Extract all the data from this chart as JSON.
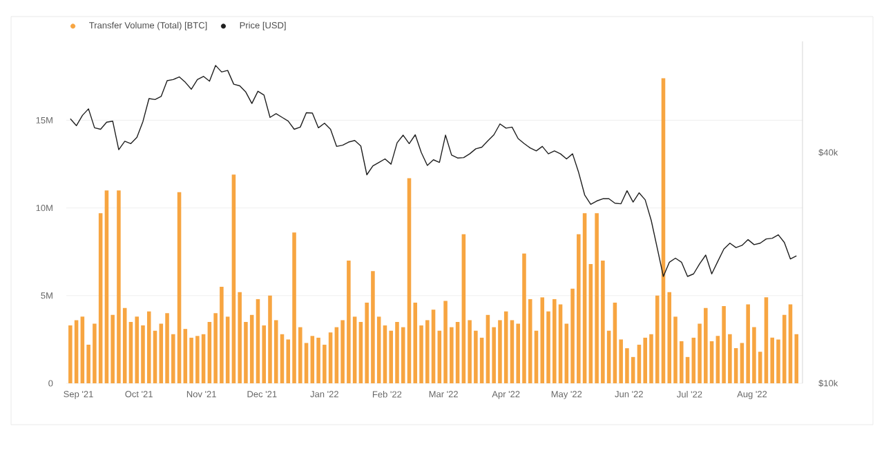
{
  "chart_data": {
    "type": "bar",
    "legend": "top left",
    "grid": "y",
    "log": "y2",
    "x": [
      "2021-08-28",
      "2021-08-31",
      "2021-09-03",
      "2021-09-06",
      "2021-09-09",
      "2021-09-12",
      "2021-09-15",
      "2021-09-18",
      "2021-09-21",
      "2021-09-24",
      "2021-09-27",
      "2021-09-30",
      "2021-10-03",
      "2021-10-06",
      "2021-10-09",
      "2021-10-12",
      "2021-10-15",
      "2021-10-18",
      "2021-10-21",
      "2021-10-24",
      "2021-10-27",
      "2021-10-30",
      "2021-11-02",
      "2021-11-05",
      "2021-11-08",
      "2021-11-11",
      "2021-11-14",
      "2021-11-17",
      "2021-11-20",
      "2021-11-23",
      "2021-11-26",
      "2021-11-29",
      "2021-12-02",
      "2021-12-05",
      "2021-12-08",
      "2021-12-11",
      "2021-12-14",
      "2021-12-17",
      "2021-12-20",
      "2021-12-23",
      "2021-12-26",
      "2021-12-29",
      "2022-01-01",
      "2022-01-04",
      "2022-01-07",
      "2022-01-10",
      "2022-01-13",
      "2022-01-16",
      "2022-01-19",
      "2022-01-22",
      "2022-01-25",
      "2022-01-28",
      "2022-01-31",
      "2022-02-03",
      "2022-02-06",
      "2022-02-09",
      "2022-02-12",
      "2022-02-15",
      "2022-02-18",
      "2022-02-21",
      "2022-02-24",
      "2022-02-27",
      "2022-03-02",
      "2022-03-05",
      "2022-03-08",
      "2022-03-11",
      "2022-03-14",
      "2022-03-17",
      "2022-03-20",
      "2022-03-23",
      "2022-03-26",
      "2022-03-29",
      "2022-04-01",
      "2022-04-04",
      "2022-04-07",
      "2022-04-10",
      "2022-04-13",
      "2022-04-16",
      "2022-04-19",
      "2022-04-22",
      "2022-04-25",
      "2022-04-28",
      "2022-05-01",
      "2022-05-04",
      "2022-05-07",
      "2022-05-10",
      "2022-05-13",
      "2022-05-16",
      "2022-05-19",
      "2022-05-22",
      "2022-05-25",
      "2022-05-28",
      "2022-05-31",
      "2022-06-03",
      "2022-06-06",
      "2022-06-09",
      "2022-06-12",
      "2022-06-15",
      "2022-06-18",
      "2022-06-21",
      "2022-06-24",
      "2022-06-27",
      "2022-06-30",
      "2022-07-03",
      "2022-07-06",
      "2022-07-09",
      "2022-07-12",
      "2022-07-15",
      "2022-07-18",
      "2022-07-21",
      "2022-07-24",
      "2022-07-27",
      "2022-07-30",
      "2022-08-02",
      "2022-08-05",
      "2022-08-08",
      "2022-08-11",
      "2022-08-14",
      "2022-08-17",
      "2022-08-20",
      "2022-08-23"
    ],
    "xlim": [
      "2021-08-26",
      "2022-08-26"
    ],
    "xticks": [
      {
        "value": "2021-09-01",
        "label": "Sep '21"
      },
      {
        "value": "2021-10-01",
        "label": "Oct '21"
      },
      {
        "value": "2021-11-01",
        "label": "Nov '21"
      },
      {
        "value": "2021-12-01",
        "label": "Dec '21"
      },
      {
        "value": "2022-01-01",
        "label": "Jan '22"
      },
      {
        "value": "2022-02-01",
        "label": "Feb '22"
      },
      {
        "value": "2022-03-01",
        "label": "Mar '22"
      },
      {
        "value": "2022-04-01",
        "label": "Apr '22"
      },
      {
        "value": "2022-05-01",
        "label": "May '22"
      },
      {
        "value": "2022-06-01",
        "label": "Jun '22"
      },
      {
        "value": "2022-07-01",
        "label": "Jul '22"
      },
      {
        "value": "2022-08-01",
        "label": "Aug '22"
      }
    ],
    "ylim": [
      0,
      19500000
    ],
    "yticks": [
      0,
      {
        "value": 5000000,
        "label": "5M"
      },
      {
        "value": 10000000,
        "label": "10M"
      },
      {
        "value": 15000000,
        "label": "15M"
      }
    ],
    "y2lim": [
      10000,
      78000
    ],
    "y2ticks": [
      {
        "value": 10000,
        "label": "$10k"
      },
      {
        "value": 40000,
        "label": "$40k"
      }
    ],
    "series": [
      {
        "name": "Transfer Volume (Total) [BTC]",
        "color": "#f7a541",
        "values": [
          3300000,
          3600000,
          3800000,
          2200000,
          3400000,
          9700000,
          11000000,
          3900000,
          11000000,
          4300000,
          3500000,
          3800000,
          3300000,
          4100000,
          3000000,
          3400000,
          4000000,
          2800000,
          10900000,
          3100000,
          2600000,
          2700000,
          2800000,
          3500000,
          4000000,
          5500000,
          3800000,
          11900000,
          5200000,
          3500000,
          3900000,
          4800000,
          3300000,
          5000000,
          3600000,
          2800000,
          2500000,
          8600000,
          3200000,
          2300000,
          2700000,
          2600000,
          2200000,
          2900000,
          3200000,
          3600000,
          7000000,
          3800000,
          3500000,
          4600000,
          6400000,
          3800000,
          3300000,
          3000000,
          3500000,
          3200000,
          11700000,
          4600000,
          3300000,
          3600000,
          4200000,
          3000000,
          4700000,
          3200000,
          3500000,
          8500000,
          3600000,
          3000000,
          2600000,
          3900000,
          3200000,
          3600000,
          4100000,
          3600000,
          3400000,
          7400000,
          4800000,
          3000000,
          4900000,
          4100000,
          4800000,
          4500000,
          3400000,
          5400000,
          8500000,
          9700000,
          6800000,
          9700000,
          7000000,
          3000000,
          4600000,
          2500000,
          2000000,
          1500000,
          2200000,
          2600000,
          2800000,
          5000000,
          17400000,
          5200000,
          3800000,
          2400000,
          1500000,
          2600000,
          3400000,
          4300000,
          2400000,
          2700000,
          4400000,
          2800000,
          2000000,
          2300000,
          4500000,
          3200000,
          1800000,
          4900000,
          2600000,
          2500000,
          3900000,
          4500000,
          2800000
        ]
      },
      {
        "name": "Price [USD]",
        "type": "line",
        "axis": "y2",
        "color": "#1f1f1f",
        "values": [
          49000,
          47000,
          50000,
          52000,
          46400,
          46000,
          48000,
          48300,
          40700,
          42800,
          42200,
          43800,
          48200,
          55300,
          55000,
          56000,
          61600,
          62000,
          63000,
          61000,
          58500,
          62000,
          63200,
          61400,
          67500,
          64900,
          65500,
          60300,
          59700,
          57500,
          53700,
          57800,
          56500,
          49400,
          50500,
          49400,
          48300,
          46000,
          46600,
          50800,
          50700,
          46400,
          47700,
          46000,
          41500,
          41800,
          42600,
          43000,
          41600,
          35000,
          36900,
          37700,
          38500,
          37300,
          42400,
          44400,
          42200,
          44500,
          40000,
          37000,
          38300,
          37700,
          44400,
          39400,
          38700,
          38800,
          39700,
          40900,
          41300,
          42900,
          44500,
          47500,
          46300,
          46600,
          43500,
          42200,
          41100,
          40400,
          41500,
          39700,
          40400,
          39700,
          38500,
          39700,
          35500,
          31000,
          29300,
          29900,
          30300,
          30300,
          29500,
          29400,
          31800,
          29700,
          31400,
          30100,
          26600,
          22500,
          19000,
          20700,
          21200,
          20700,
          19000,
          19300,
          20500,
          21600,
          19300,
          20800,
          22400,
          23200,
          22600,
          22900,
          23700,
          23000,
          23200,
          23800,
          23900,
          24400,
          23300,
          21100,
          21500
        ]
      }
    ]
  }
}
